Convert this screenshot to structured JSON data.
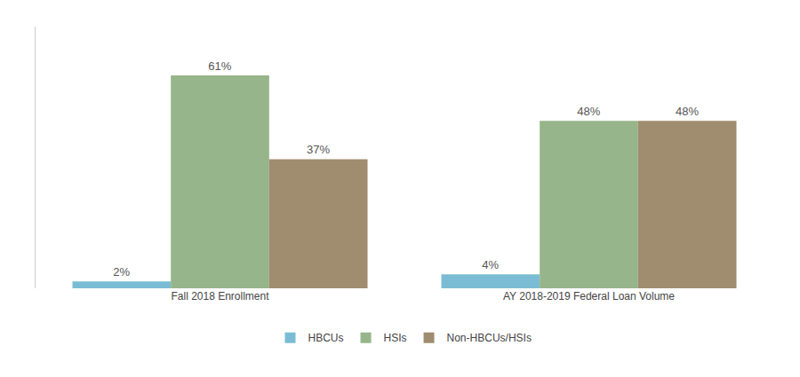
{
  "chart_data": {
    "type": "bar",
    "categories": [
      "Fall 2018 Enrollment",
      "AY 2018-2019 Federal Loan Volume"
    ],
    "series": [
      {
        "name": "HBCUs",
        "color": "#7bbcd5",
        "values": [
          2,
          4
        ],
        "value_labels": [
          "2%",
          "4%"
        ]
      },
      {
        "name": "HSIs",
        "color": "#96b58a",
        "values": [
          61,
          48
        ],
        "value_labels": [
          "61%",
          "48%"
        ]
      },
      {
        "name": "Non-HBCUs/HSIs",
        "color": "#a08c6e",
        "values": [
          37,
          48
        ],
        "value_labels": [
          "37%",
          "48%"
        ]
      }
    ],
    "ylim": [
      0,
      75
    ],
    "data_labels": true,
    "tick_labels": "x",
    "grid": false,
    "legend": "bottom"
  }
}
